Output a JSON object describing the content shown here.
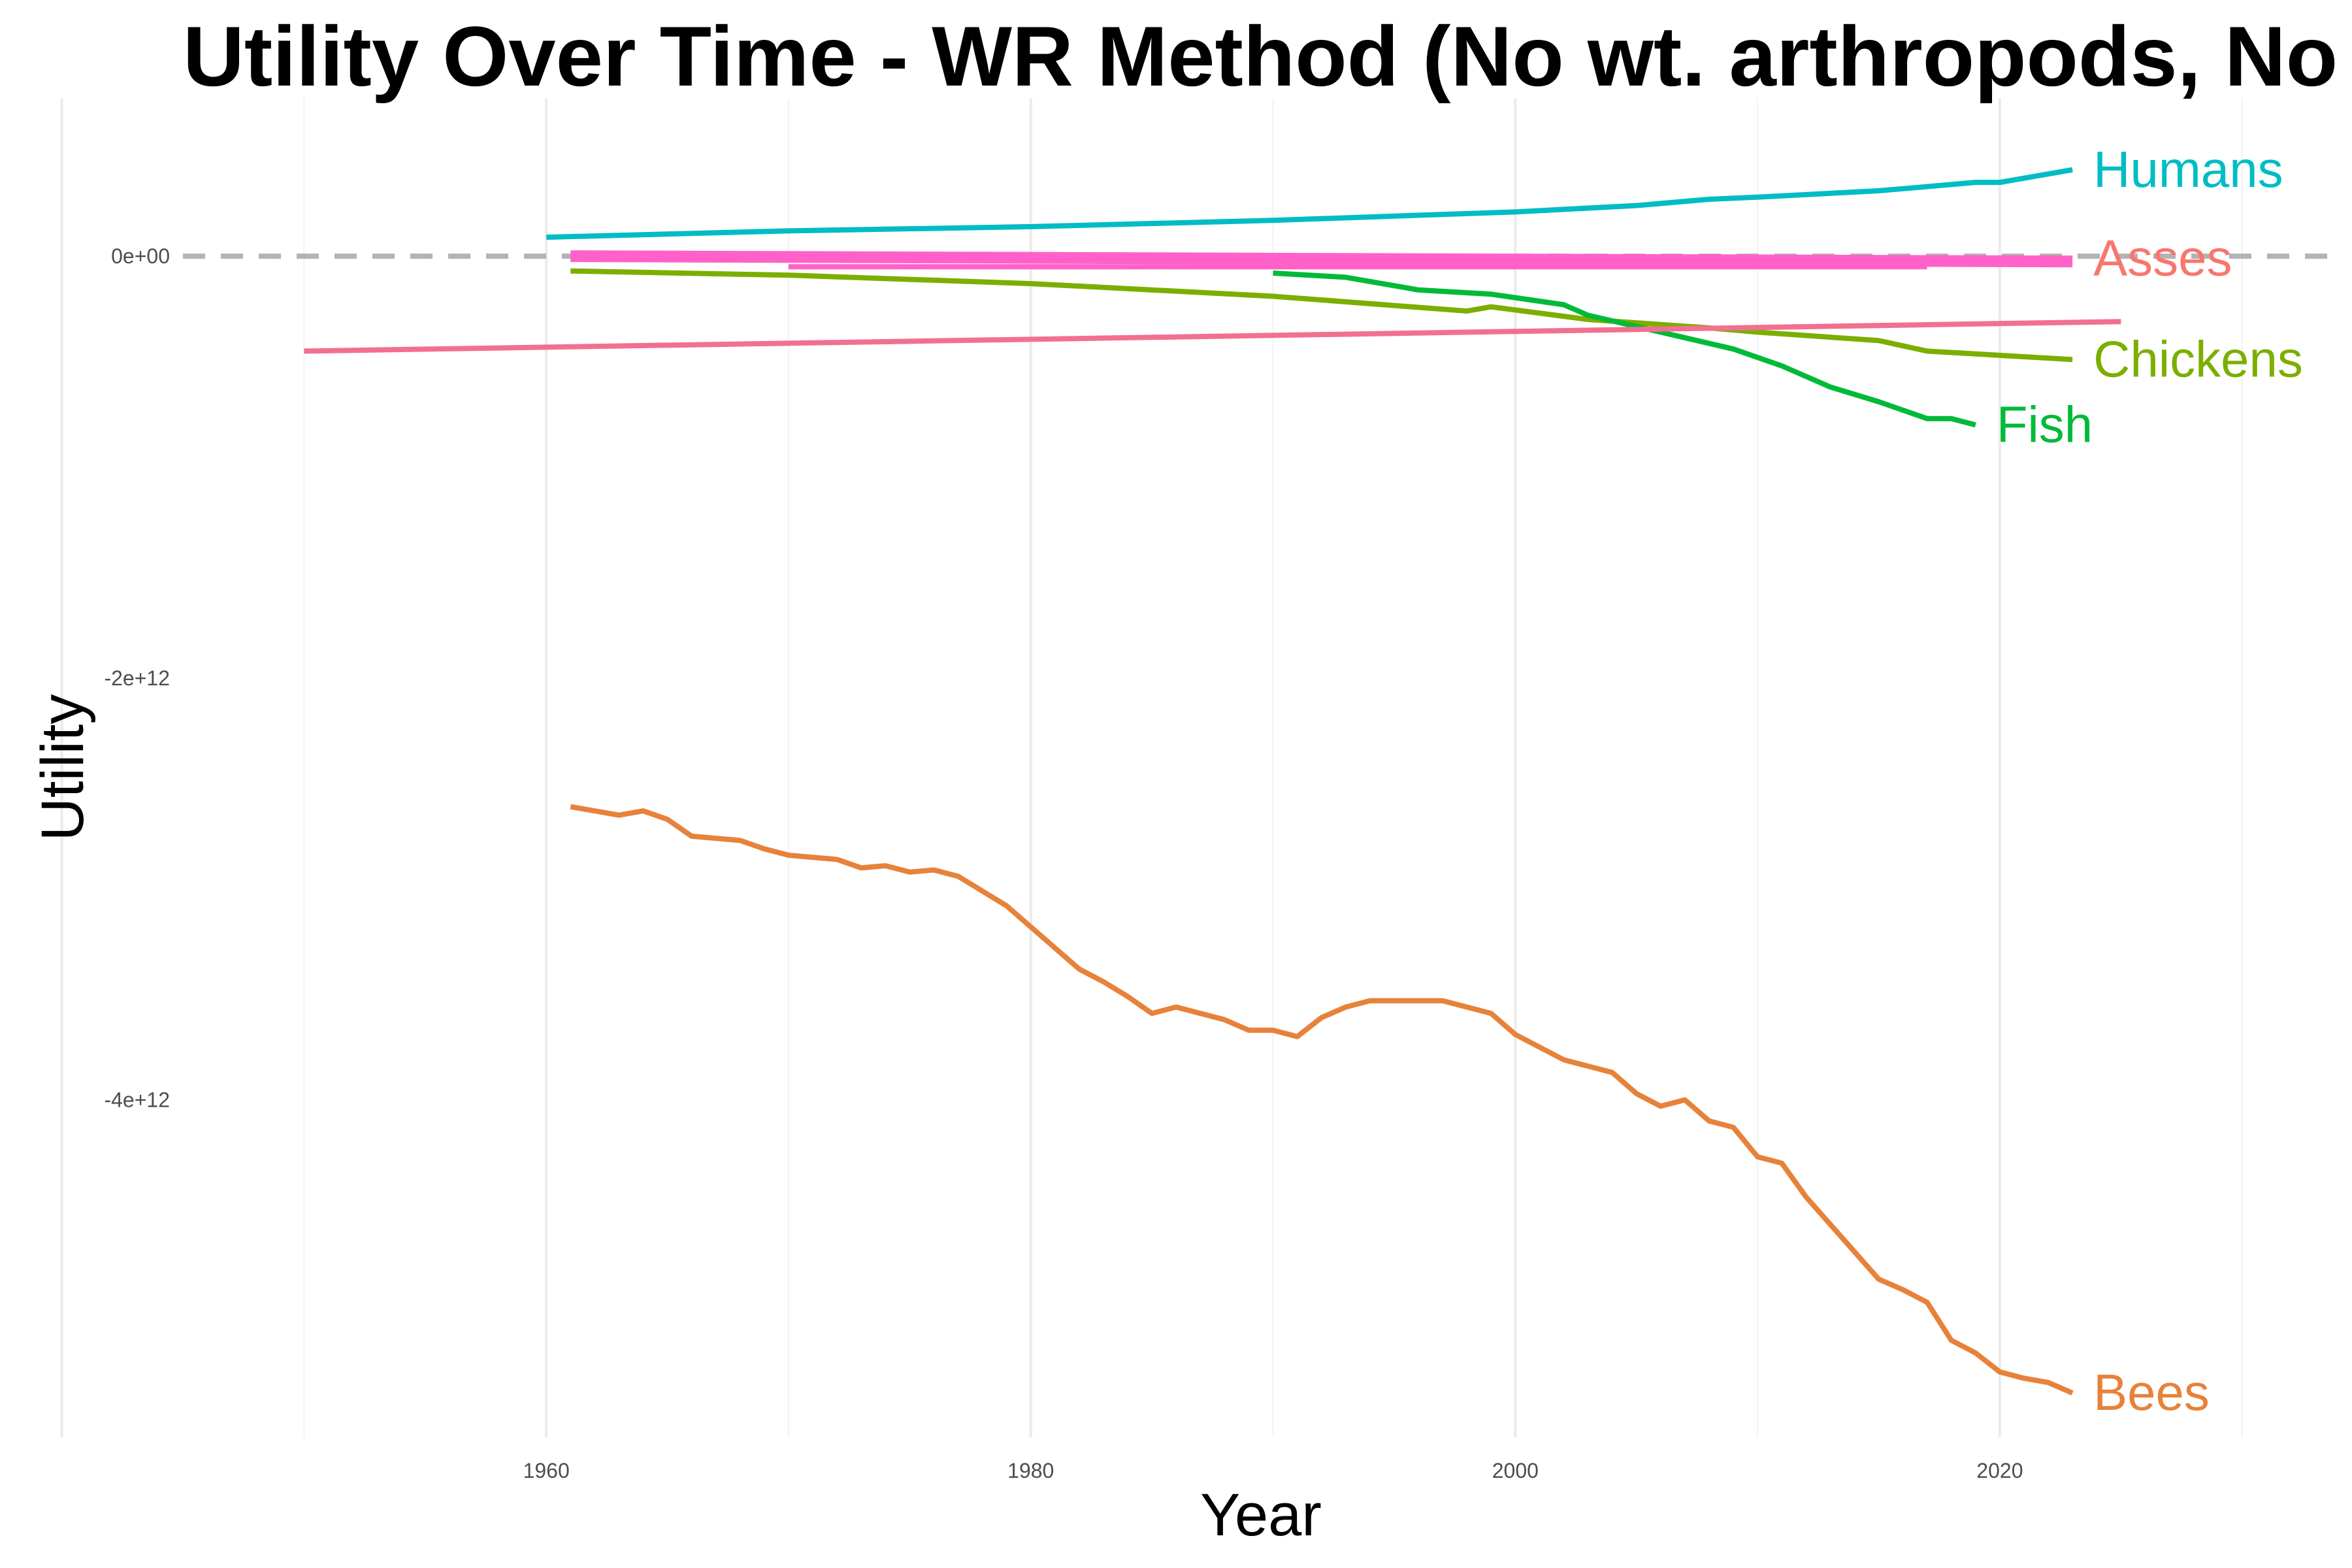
{
  "chart_data": {
    "type": "line",
    "title": "Utility Over Time - WR Method (No wt. arthropods, No w.",
    "xlabel": "Year",
    "ylabel": "Utility",
    "xlim": [
      1945,
      2034
    ],
    "ylim": [
      -5600000000000.0,
      750000000000.0
    ],
    "x_ticks": [
      1960,
      1980,
      2000,
      2020
    ],
    "y_ticks": [
      0,
      -2000000000000.0,
      -4000000000000.0
    ],
    "y_tick_labels": [
      "0e+00",
      "-2e+12",
      "-4e+12"
    ],
    "reference_line": {
      "y": 0,
      "style": "dashed",
      "color": "#b3b3b3"
    },
    "grid": true,
    "legend": "none (direct labels at line ends)",
    "series": [
      {
        "name": "Humans",
        "color": "#00bcc4",
        "label": true,
        "x": [
          1960,
          1970,
          1980,
          1990,
          2000,
          2005,
          2008,
          2010,
          2015,
          2019,
          2020,
          2023
        ],
        "y": [
          90000000000.0,
          120000000000.0,
          140000000000.0,
          170000000000.0,
          210000000000.0,
          240000000000.0,
          270000000000.0,
          280000000000.0,
          310000000000.0,
          350000000000.0,
          350000000000.0,
          410000000000.0
        ]
      },
      {
        "name": "Asses",
        "color": "#f8766d",
        "label": true,
        "x": [
          1961,
          2023
        ],
        "y": [
          -5000000000.0,
          -10000000000.0
        ]
      },
      {
        "name": "",
        "color": "#ff61c9",
        "label": false,
        "x": [
          1961,
          2023
        ],
        "y": [
          0.0,
          -25000000000.0
        ]
      },
      {
        "name": "",
        "color": "#ff61c9",
        "label": false,
        "x": [
          1970,
          2017
        ],
        "y": [
          -50000000000.0,
          -50000000000.0
        ]
      },
      {
        "name": "Chickens",
        "color": "#7cae00",
        "label": true,
        "x": [
          1961,
          1970,
          1980,
          1990,
          1998,
          1999,
          2003,
          2008,
          2010,
          2015,
          2017,
          2020,
          2023
        ],
        "y": [
          -70000000000.0,
          -90000000000.0,
          -130000000000.0,
          -190000000000.0,
          -260000000000.0,
          -240000000000.0,
          -300000000000.0,
          -340000000000.0,
          -360000000000.0,
          -400000000000.0,
          -450000000000.0,
          -470000000000.0,
          -490000000000.0
        ]
      },
      {
        "name": "Fish",
        "color": "#00ba38",
        "label": true,
        "x": [
          1990,
          1993,
          1996,
          1999,
          2002,
          2003,
          2006,
          2009,
          2011,
          2013,
          2015,
          2017,
          2018,
          2019
        ],
        "y": [
          -80000000000.0,
          -100000000000.0,
          -160000000000.0,
          -180000000000.0,
          -230000000000.0,
          -280000000000.0,
          -360000000000.0,
          -440000000000.0,
          -520000000000.0,
          -620000000000.0,
          -690000000000.0,
          -770000000000.0,
          -770000000000.0,
          -800000000000.0
        ]
      },
      {
        "name": "",
        "color": "#f2708f",
        "label": false,
        "x": [
          1950,
          2025
        ],
        "y": [
          -450000000000.0,
          -310000000000.0
        ]
      },
      {
        "name": "Bees",
        "color": "#e7823a",
        "label": true,
        "x": [
          1961,
          1962,
          1963,
          1964,
          1965,
          1966,
          1967,
          1968,
          1969,
          1970,
          1971,
          1972,
          1973,
          1974,
          1975,
          1976,
          1977,
          1978,
          1979,
          1980,
          1981,
          1982,
          1983,
          1984,
          1985,
          1986,
          1987,
          1988,
          1989,
          1990,
          1991,
          1992,
          1993,
          1994,
          1995,
          1996,
          1997,
          1998,
          1999,
          2000,
          2001,
          2002,
          2003,
          2004,
          2005,
          2006,
          2007,
          2008,
          2009,
          2010,
          2011,
          2012,
          2013,
          2014,
          2015,
          2016,
          2017,
          2018,
          2019,
          2020,
          2021,
          2022,
          2023
        ],
        "y": [
          -2610000000000.0,
          -2630000000000.0,
          -2650000000000.0,
          -2630000000000.0,
          -2670000000000.0,
          -2750000000000.0,
          -2760000000000.0,
          -2770000000000.0,
          -2810000000000.0,
          -2840000000000.0,
          -2850000000000.0,
          -2860000000000.0,
          -2900000000000.0,
          -2890000000000.0,
          -2920000000000.0,
          -2910000000000.0,
          -2940000000000.0,
          -3010000000000.0,
          -3080000000000.0,
          -3180000000000.0,
          -3280000000000.0,
          -3380000000000.0,
          -3440000000000.0,
          -3510000000000.0,
          -3590000000000.0,
          -3560000000000.0,
          -3590000000000.0,
          -3620000000000.0,
          -3670000000000.0,
          -3670000000000.0,
          -3700000000000.0,
          -3610000000000.0,
          -3560000000000.0,
          -3530000000000.0,
          -3530000000000.0,
          -3530000000000.0,
          -3530000000000.0,
          -3560000000000.0,
          -3590000000000.0,
          -3690000000000.0,
          -3750000000000.0,
          -3810000000000.0,
          -3840000000000.0,
          -3870000000000.0,
          -3970000000000.0,
          -4030000000000.0,
          -4000000000000.0,
          -4100000000000.0,
          -4130000000000.0,
          -4270000000000.0,
          -4300000000000.0,
          -4460000000000.0,
          -4590000000000.0,
          -4720000000000.0,
          -4850000000000.0,
          -4900000000000.0,
          -4960000000000.0,
          -5140000000000.0,
          -5200000000000.0,
          -5290000000000.0,
          -5320000000000.0,
          -5340000000000.0,
          -5390000000000.0
        ]
      }
    ]
  }
}
